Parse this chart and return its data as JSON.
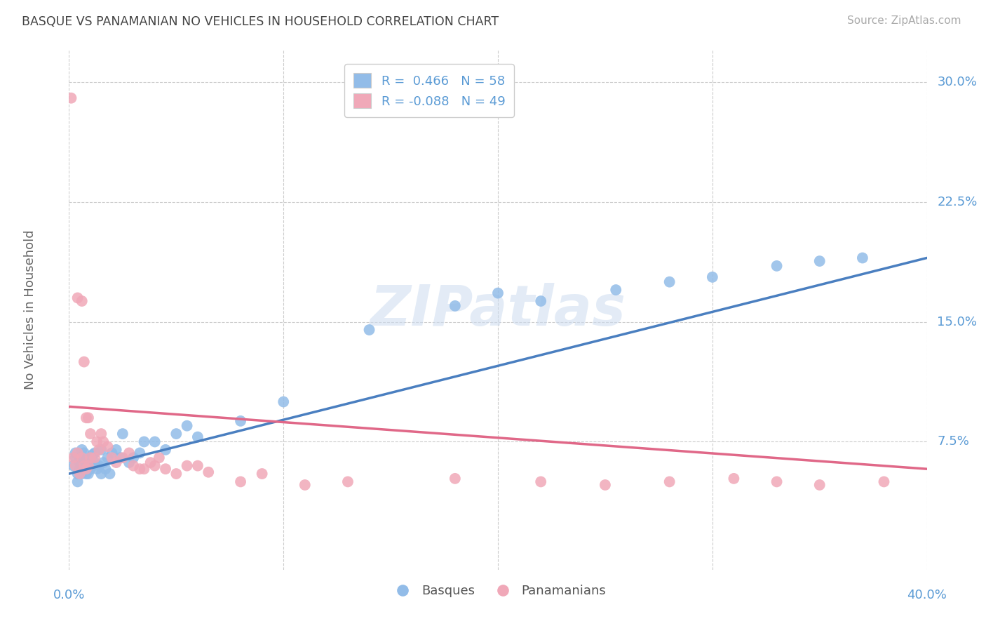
{
  "title": "BASQUE VS PANAMANIAN NO VEHICLES IN HOUSEHOLD CORRELATION CHART",
  "source": "Source: ZipAtlas.com",
  "ylabel": "No Vehicles in Household",
  "ytick_vals": [
    0.075,
    0.15,
    0.225,
    0.3
  ],
  "ytick_labels": [
    "7.5%",
    "15.0%",
    "22.5%",
    "30.0%"
  ],
  "xtick_vals": [
    0.0,
    0.1,
    0.2,
    0.3,
    0.4
  ],
  "xlim": [
    0.0,
    0.4
  ],
  "ylim": [
    -0.005,
    0.32
  ],
  "watermark": "ZIPatlas",
  "legend_blue_R": "R =  0.466",
  "legend_blue_N": "N = 58",
  "legend_pink_R": "R = -0.088",
  "legend_pink_N": "N = 49",
  "blue_color": "#92bce8",
  "pink_color": "#f0a8b8",
  "blue_line_color": "#4a7fc0",
  "pink_line_color": "#e06888",
  "title_color": "#444444",
  "tick_label_color": "#5b9bd5",
  "background_color": "#ffffff",
  "grid_color": "#cccccc",
  "blue_scatter_x": [
    0.002,
    0.003,
    0.003,
    0.004,
    0.004,
    0.005,
    0.005,
    0.005,
    0.006,
    0.006,
    0.006,
    0.007,
    0.007,
    0.007,
    0.008,
    0.008,
    0.008,
    0.009,
    0.009,
    0.01,
    0.01,
    0.011,
    0.011,
    0.012,
    0.012,
    0.013,
    0.014,
    0.015,
    0.015,
    0.016,
    0.017,
    0.018,
    0.019,
    0.02,
    0.022,
    0.024,
    0.025,
    0.028,
    0.03,
    0.033,
    0.035,
    0.04,
    0.045,
    0.05,
    0.055,
    0.06,
    0.08,
    0.1,
    0.14,
    0.18,
    0.2,
    0.22,
    0.255,
    0.28,
    0.3,
    0.33,
    0.35,
    0.37
  ],
  "blue_scatter_y": [
    0.06,
    0.065,
    0.068,
    0.05,
    0.055,
    0.058,
    0.062,
    0.065,
    0.055,
    0.06,
    0.07,
    0.058,
    0.062,
    0.068,
    0.055,
    0.06,
    0.063,
    0.055,
    0.06,
    0.058,
    0.065,
    0.06,
    0.067,
    0.062,
    0.068,
    0.058,
    0.06,
    0.055,
    0.07,
    0.062,
    0.058,
    0.065,
    0.055,
    0.068,
    0.07,
    0.065,
    0.08,
    0.062,
    0.065,
    0.068,
    0.075,
    0.075,
    0.07,
    0.08,
    0.085,
    0.078,
    0.088,
    0.1,
    0.145,
    0.16,
    0.168,
    0.163,
    0.17,
    0.175,
    0.178,
    0.185,
    0.188,
    0.19
  ],
  "pink_scatter_x": [
    0.001,
    0.002,
    0.003,
    0.004,
    0.004,
    0.005,
    0.006,
    0.006,
    0.007,
    0.007,
    0.008,
    0.008,
    0.009,
    0.009,
    0.01,
    0.01,
    0.012,
    0.013,
    0.014,
    0.015,
    0.016,
    0.018,
    0.02,
    0.022,
    0.025,
    0.028,
    0.03,
    0.033,
    0.035,
    0.038,
    0.04,
    0.042,
    0.045,
    0.05,
    0.055,
    0.06,
    0.065,
    0.08,
    0.09,
    0.11,
    0.13,
    0.18,
    0.22,
    0.25,
    0.28,
    0.31,
    0.33,
    0.35,
    0.38
  ],
  "pink_scatter_y": [
    0.29,
    0.065,
    0.06,
    0.068,
    0.165,
    0.055,
    0.065,
    0.163,
    0.125,
    0.06,
    0.058,
    0.09,
    0.06,
    0.09,
    0.065,
    0.08,
    0.065,
    0.075,
    0.07,
    0.08,
    0.075,
    0.072,
    0.065,
    0.062,
    0.065,
    0.068,
    0.06,
    0.058,
    0.058,
    0.062,
    0.06,
    0.065,
    0.058,
    0.055,
    0.06,
    0.06,
    0.056,
    0.05,
    0.055,
    0.048,
    0.05,
    0.052,
    0.05,
    0.048,
    0.05,
    0.052,
    0.05,
    0.048,
    0.05
  ],
  "blue_trend_x": [
    0.0,
    0.4
  ],
  "blue_trend_y": [
    0.055,
    0.19
  ],
  "pink_trend_x": [
    0.0,
    0.4
  ],
  "pink_trend_y": [
    0.097,
    0.058
  ]
}
